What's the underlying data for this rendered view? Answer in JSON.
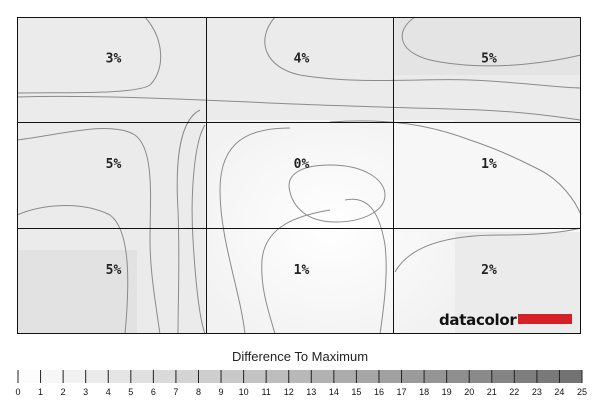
{
  "chart_data": {
    "type": "heatmap",
    "rows": 3,
    "cols": 3,
    "cells": [
      [
        "3%",
        "4%",
        "5%"
      ],
      [
        "5%",
        "0%",
        "1%"
      ],
      [
        "5%",
        "1%",
        "2%"
      ]
    ],
    "values": [
      [
        3,
        4,
        5
      ],
      [
        5,
        0,
        1
      ],
      [
        5,
        1,
        2
      ]
    ],
    "scale": {
      "title": "Difference To Maximum",
      "ticks": [
        "0",
        "1",
        "2",
        "3",
        "4",
        "5",
        "6",
        "7",
        "8",
        "9",
        "10",
        "11",
        "12",
        "13",
        "14",
        "15",
        "16",
        "17",
        "18",
        "19",
        "20",
        "21",
        "22",
        "23",
        "24",
        "25"
      ],
      "min": 0,
      "max": 25,
      "colors": {
        "low": "#ffffff",
        "high": "#707070"
      }
    },
    "logo_text": "datacolor",
    "logo_accent_color": "#d42027"
  }
}
